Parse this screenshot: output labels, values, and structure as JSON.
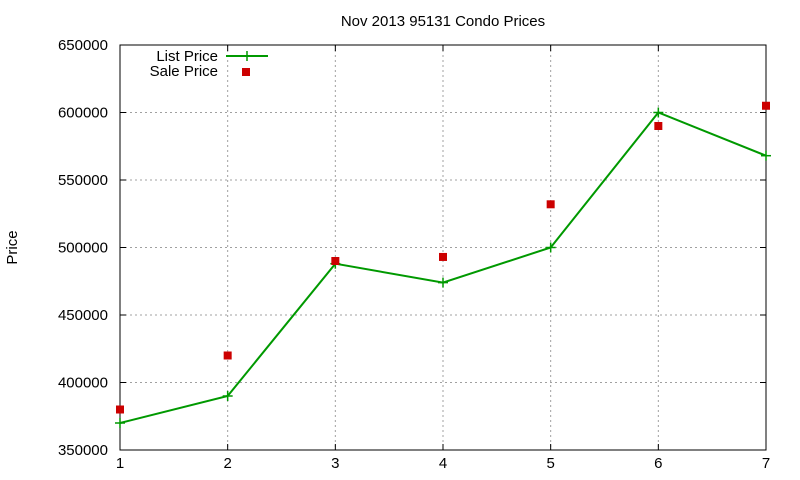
{
  "chart_data": {
    "type": "line",
    "title": "Nov 2013 95131 Condo Prices",
    "xlabel": "",
    "ylabel": "Price",
    "x": [
      1,
      2,
      3,
      4,
      5,
      6,
      7
    ],
    "xlim": [
      1,
      7
    ],
    "ylim": [
      350000,
      650000
    ],
    "xticks": [
      1,
      2,
      3,
      4,
      5,
      6,
      7
    ],
    "yticks": [
      350000,
      400000,
      450000,
      500000,
      550000,
      600000,
      650000
    ],
    "grid": true,
    "legend_position": "top-left",
    "series": [
      {
        "name": "List Price",
        "style": "line+cross",
        "color": "#009900",
        "values": [
          370000,
          390000,
          488000,
          474000,
          500000,
          600000,
          568000
        ]
      },
      {
        "name": "Sale Price",
        "style": "square",
        "color": "#cc0000",
        "values": [
          380000,
          420000,
          490000,
          493000,
          532000,
          590000,
          605000
        ]
      }
    ]
  }
}
